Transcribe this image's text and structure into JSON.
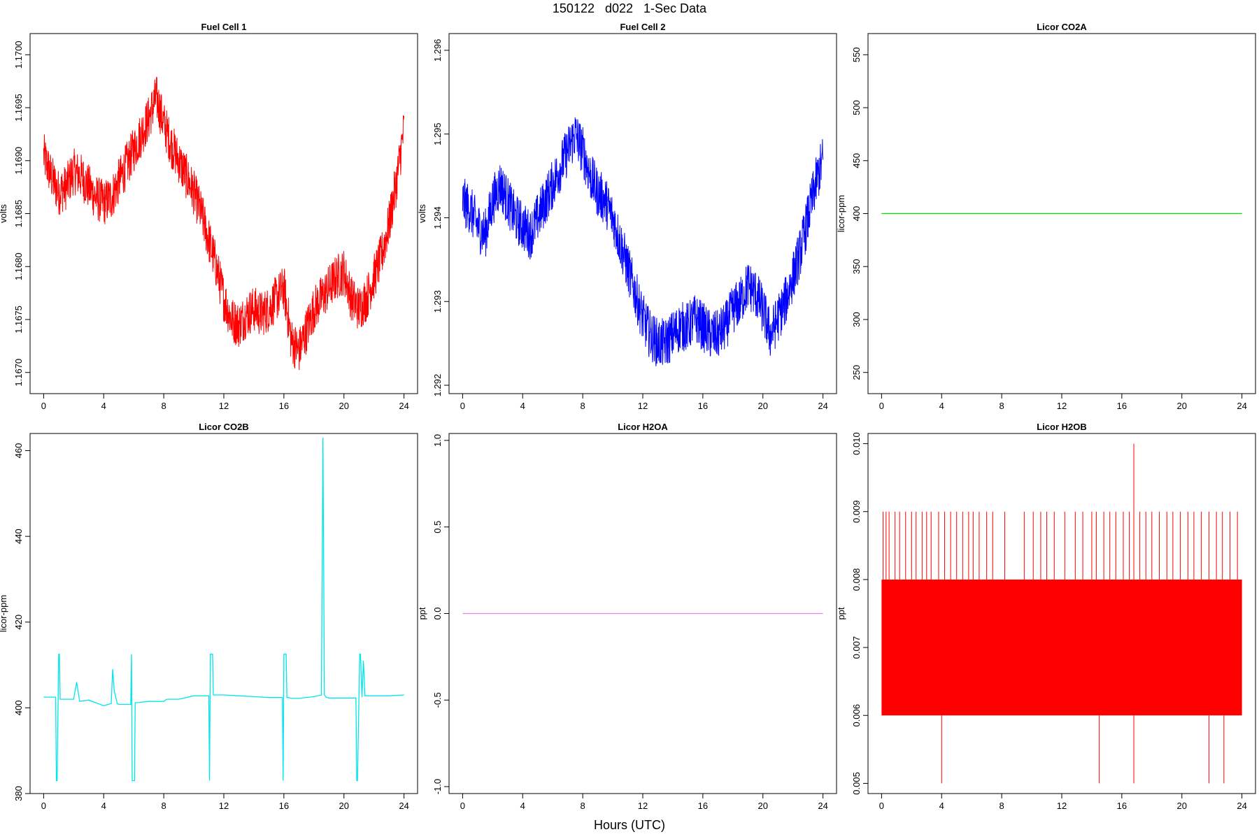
{
  "page": {
    "title": "150122   d022   1-Sec Data",
    "xlabel": "Hours (UTC)"
  },
  "chart_data": [
    {
      "type": "line",
      "title": "Fuel Cell 1",
      "xlabel": "",
      "ylabel": "volts",
      "xlim": [
        0,
        24
      ],
      "ylim": [
        1.1668,
        1.1702
      ],
      "xticks": [
        0,
        4,
        8,
        12,
        16,
        20,
        24
      ],
      "yticks": [
        1.167,
        1.1675,
        1.168,
        1.1685,
        1.169,
        1.1695,
        1.17
      ],
      "ytick_labels": [
        "1.1670",
        "1.1675",
        "1.1680",
        "1.1685",
        "1.1690",
        "1.1695",
        "1.1700"
      ],
      "series": [
        {
          "color": "#ff0000",
          "noise": 0.00022,
          "x": [
            0,
            0.5,
            1,
            1.5,
            2,
            2.5,
            3,
            3.5,
            4,
            4.5,
            5,
            5.5,
            6,
            6.5,
            7,
            7.5,
            8,
            8.5,
            9,
            9.5,
            10,
            10.5,
            11,
            11.5,
            12,
            12.5,
            13,
            13.5,
            14,
            14.5,
            15,
            15.5,
            16,
            16.5,
            17,
            17.5,
            18,
            18.5,
            19,
            19.5,
            20,
            20.5,
            21,
            21.5,
            22,
            22.5,
            23,
            23.5,
            24
          ],
          "y": [
            1.16905,
            1.16885,
            1.1687,
            1.16875,
            1.1689,
            1.16885,
            1.16875,
            1.16865,
            1.1686,
            1.16865,
            1.1688,
            1.16895,
            1.1691,
            1.16925,
            1.1694,
            1.1696,
            1.16935,
            1.16915,
            1.169,
            1.16885,
            1.1687,
            1.1685,
            1.16825,
            1.168,
            1.1677,
            1.1675,
            1.16745,
            1.16755,
            1.1676,
            1.16755,
            1.1676,
            1.1677,
            1.1678,
            1.1673,
            1.1672,
            1.1674,
            1.1676,
            1.1677,
            1.1678,
            1.1679,
            1.16795,
            1.1677,
            1.1676,
            1.1677,
            1.1679,
            1.1681,
            1.1684,
            1.1688,
            1.1693
          ]
        }
      ]
    },
    {
      "type": "line",
      "title": "Fuel Cell 2",
      "xlabel": "",
      "ylabel": "volts",
      "xlim": [
        0,
        24
      ],
      "ylim": [
        1.2919,
        1.2962
      ],
      "xticks": [
        0,
        4,
        8,
        12,
        16,
        20,
        24
      ],
      "yticks": [
        1.292,
        1.293,
        1.294,
        1.295,
        1.296
      ],
      "ytick_labels": [
        "1.292",
        "1.293",
        "1.294",
        "1.295",
        "1.296"
      ],
      "series": [
        {
          "color": "#0000ff",
          "noise": 0.0003,
          "x": [
            0,
            0.5,
            1,
            1.5,
            2,
            2.5,
            3,
            3.5,
            4,
            4.5,
            5,
            5.5,
            6,
            6.5,
            7,
            7.5,
            8,
            8.5,
            9,
            9.5,
            10,
            10.5,
            11,
            11.5,
            12,
            12.5,
            13,
            13.5,
            14,
            14.5,
            15,
            15.5,
            16,
            16.5,
            17,
            17.5,
            18,
            18.5,
            19,
            19.5,
            20,
            20.5,
            21,
            21.5,
            22,
            22.5,
            23,
            23.5,
            24
          ],
          "y": [
            1.2942,
            1.2941,
            1.2939,
            1.2938,
            1.2942,
            1.2944,
            1.2942,
            1.294,
            1.2939,
            1.2938,
            1.294,
            1.2942,
            1.2944,
            1.2946,
            1.2948,
            1.295,
            1.2948,
            1.2945,
            1.2943,
            1.2942,
            1.294,
            1.2937,
            1.2934,
            1.2931,
            1.2928,
            1.2926,
            1.2925,
            1.2925,
            1.2926,
            1.2927,
            1.2927,
            1.2928,
            1.2927,
            1.2926,
            1.2926,
            1.2927,
            1.2929,
            1.293,
            1.2932,
            1.2931,
            1.2929,
            1.2926,
            1.2928,
            1.293,
            1.2933,
            1.2936,
            1.294,
            1.2944,
            1.2947
          ]
        }
      ]
    },
    {
      "type": "line",
      "title": "Licor CO2A",
      "xlabel": "",
      "ylabel": "licor-ppm",
      "xlim": [
        0,
        24
      ],
      "ylim": [
        230,
        570
      ],
      "xticks": [
        0,
        4,
        8,
        12,
        16,
        20,
        24
      ],
      "yticks": [
        250,
        300,
        350,
        400,
        450,
        500,
        550
      ],
      "ytick_labels": [
        "250",
        "300",
        "350",
        "400",
        "450",
        "500",
        "550"
      ],
      "series": [
        {
          "color": "#00dd00",
          "noise": 0,
          "x": [
            0,
            24
          ],
          "y": [
            400,
            400
          ]
        }
      ]
    },
    {
      "type": "line",
      "title": "Licor CO2B",
      "xlabel": "",
      "ylabel": "licor-ppm",
      "xlim": [
        0,
        24
      ],
      "ylim": [
        380,
        464
      ],
      "xticks": [
        0,
        4,
        8,
        12,
        16,
        20,
        24
      ],
      "yticks": [
        380,
        400,
        420,
        440,
        460
      ],
      "ytick_labels": [
        "380",
        "400",
        "420",
        "440",
        "460"
      ],
      "series": [
        {
          "color": "#00e5ee",
          "noise": 0,
          "x": [
            0,
            0.8,
            0.85,
            0.9,
            1.0,
            1.05,
            1.1,
            2.0,
            2.2,
            2.4,
            3.0,
            4.0,
            4.5,
            4.6,
            4.7,
            4.9,
            5.0,
            5.8,
            5.85,
            5.9,
            6.05,
            6.1,
            6.2,
            7.0,
            8.0,
            8.2,
            9.0,
            10.0,
            11.0,
            11.05,
            11.1,
            11.25,
            11.3,
            11.4,
            12.0,
            13.0,
            14.0,
            15.0,
            15.9,
            15.95,
            16.0,
            16.15,
            16.2,
            16.3,
            16.5,
            17.0,
            18.0,
            18.5,
            18.6,
            18.7,
            18.8,
            19.0,
            20.0,
            20.8,
            20.85,
            20.9,
            21.05,
            21.1,
            21.2,
            21.3,
            21.4,
            22.0,
            23.0,
            24.0
          ],
          "y": [
            402.5,
            402.5,
            383,
            383,
            412.5,
            412.5,
            402,
            402,
            406,
            401.5,
            401.8,
            400.5,
            401,
            409,
            404,
            401,
            400.8,
            400.8,
            412.5,
            383,
            383,
            401.2,
            401.2,
            401.5,
            401.5,
            402,
            402,
            402.8,
            402.8,
            383,
            412.5,
            412.5,
            403,
            403,
            403,
            402.8,
            402.6,
            402.4,
            402.4,
            383,
            412.5,
            412.5,
            402.4,
            402.4,
            402.2,
            402.2,
            402.6,
            403,
            463,
            403,
            402.5,
            402.3,
            402.3,
            402.3,
            383,
            383,
            412.5,
            412.5,
            402.5,
            411,
            402.8,
            402.8,
            402.8,
            403
          ]
        }
      ]
    },
    {
      "type": "line",
      "title": "Licor H2OA",
      "xlabel": "",
      "ylabel": "ppt",
      "xlim": [
        0,
        24
      ],
      "ylim": [
        -1.04,
        1.04
      ],
      "xticks": [
        0,
        4,
        8,
        12,
        16,
        20,
        24
      ],
      "yticks": [
        -1.0,
        -0.5,
        0.0,
        0.5,
        1.0
      ],
      "ytick_labels": [
        "-1.0",
        "-0.5",
        "0.0",
        "0.5",
        "1.0"
      ],
      "series": [
        {
          "color": "#dd88dd",
          "noise": 0,
          "x": [
            0,
            24
          ],
          "y": [
            0,
            0
          ]
        }
      ]
    },
    {
      "type": "line",
      "title": "Licor H2OB",
      "xlabel": "",
      "ylabel": "ppt",
      "xlim": [
        0,
        24
      ],
      "ylim": [
        0.00485,
        0.01015
      ],
      "xticks": [
        0,
        4,
        8,
        12,
        16,
        20,
        24
      ],
      "yticks": [
        0.005,
        0.006,
        0.007,
        0.008,
        0.009,
        0.01
      ],
      "ytick_labels": [
        "0.005",
        "0.006",
        "0.007",
        "0.008",
        "0.009",
        "0.010"
      ],
      "series": [
        {
          "color": "#ff0000",
          "noise": 0,
          "band": [
            0.006,
            0.008
          ],
          "spikes_high": [
            [
              0.1,
              0.009
            ],
            [
              0.3,
              0.009
            ],
            [
              0.5,
              0.009
            ],
            [
              0.9,
              0.009
            ],
            [
              1.2,
              0.009
            ],
            [
              1.6,
              0.009
            ],
            [
              2.0,
              0.009
            ],
            [
              2.3,
              0.009
            ],
            [
              2.7,
              0.009
            ],
            [
              3.0,
              0.009
            ],
            [
              3.3,
              0.009
            ],
            [
              3.8,
              0.009
            ],
            [
              4.2,
              0.009
            ],
            [
              4.6,
              0.009
            ],
            [
              5.0,
              0.009
            ],
            [
              5.4,
              0.009
            ],
            [
              5.8,
              0.009
            ],
            [
              6.1,
              0.009
            ],
            [
              6.5,
              0.009
            ],
            [
              7.0,
              0.009
            ],
            [
              7.4,
              0.009
            ],
            [
              8.2,
              0.009
            ],
            [
              9.5,
              0.009
            ],
            [
              10.1,
              0.009
            ],
            [
              10.6,
              0.009
            ],
            [
              11.0,
              0.009
            ],
            [
              11.5,
              0.009
            ],
            [
              12.2,
              0.009
            ],
            [
              12.9,
              0.009
            ],
            [
              13.4,
              0.009
            ],
            [
              14.0,
              0.009
            ],
            [
              14.3,
              0.009
            ],
            [
              14.8,
              0.009
            ],
            [
              15.2,
              0.009
            ],
            [
              15.6,
              0.009
            ],
            [
              16.1,
              0.009
            ],
            [
              16.5,
              0.009
            ],
            [
              16.8,
              0.01
            ],
            [
              17.2,
              0.009
            ],
            [
              17.6,
              0.009
            ],
            [
              18.0,
              0.009
            ],
            [
              18.5,
              0.009
            ],
            [
              19.0,
              0.009
            ],
            [
              19.4,
              0.009
            ],
            [
              19.9,
              0.009
            ],
            [
              20.4,
              0.009
            ],
            [
              20.8,
              0.009
            ],
            [
              21.3,
              0.009
            ],
            [
              21.8,
              0.009
            ],
            [
              22.3,
              0.009
            ],
            [
              22.7,
              0.009
            ],
            [
              23.2,
              0.009
            ],
            [
              23.7,
              0.009
            ]
          ],
          "spikes_low": [
            [
              4.0,
              0.005
            ],
            [
              14.5,
              0.005
            ],
            [
              16.8,
              0.005
            ],
            [
              21.8,
              0.005
            ],
            [
              22.8,
              0.005
            ]
          ]
        }
      ]
    }
  ]
}
